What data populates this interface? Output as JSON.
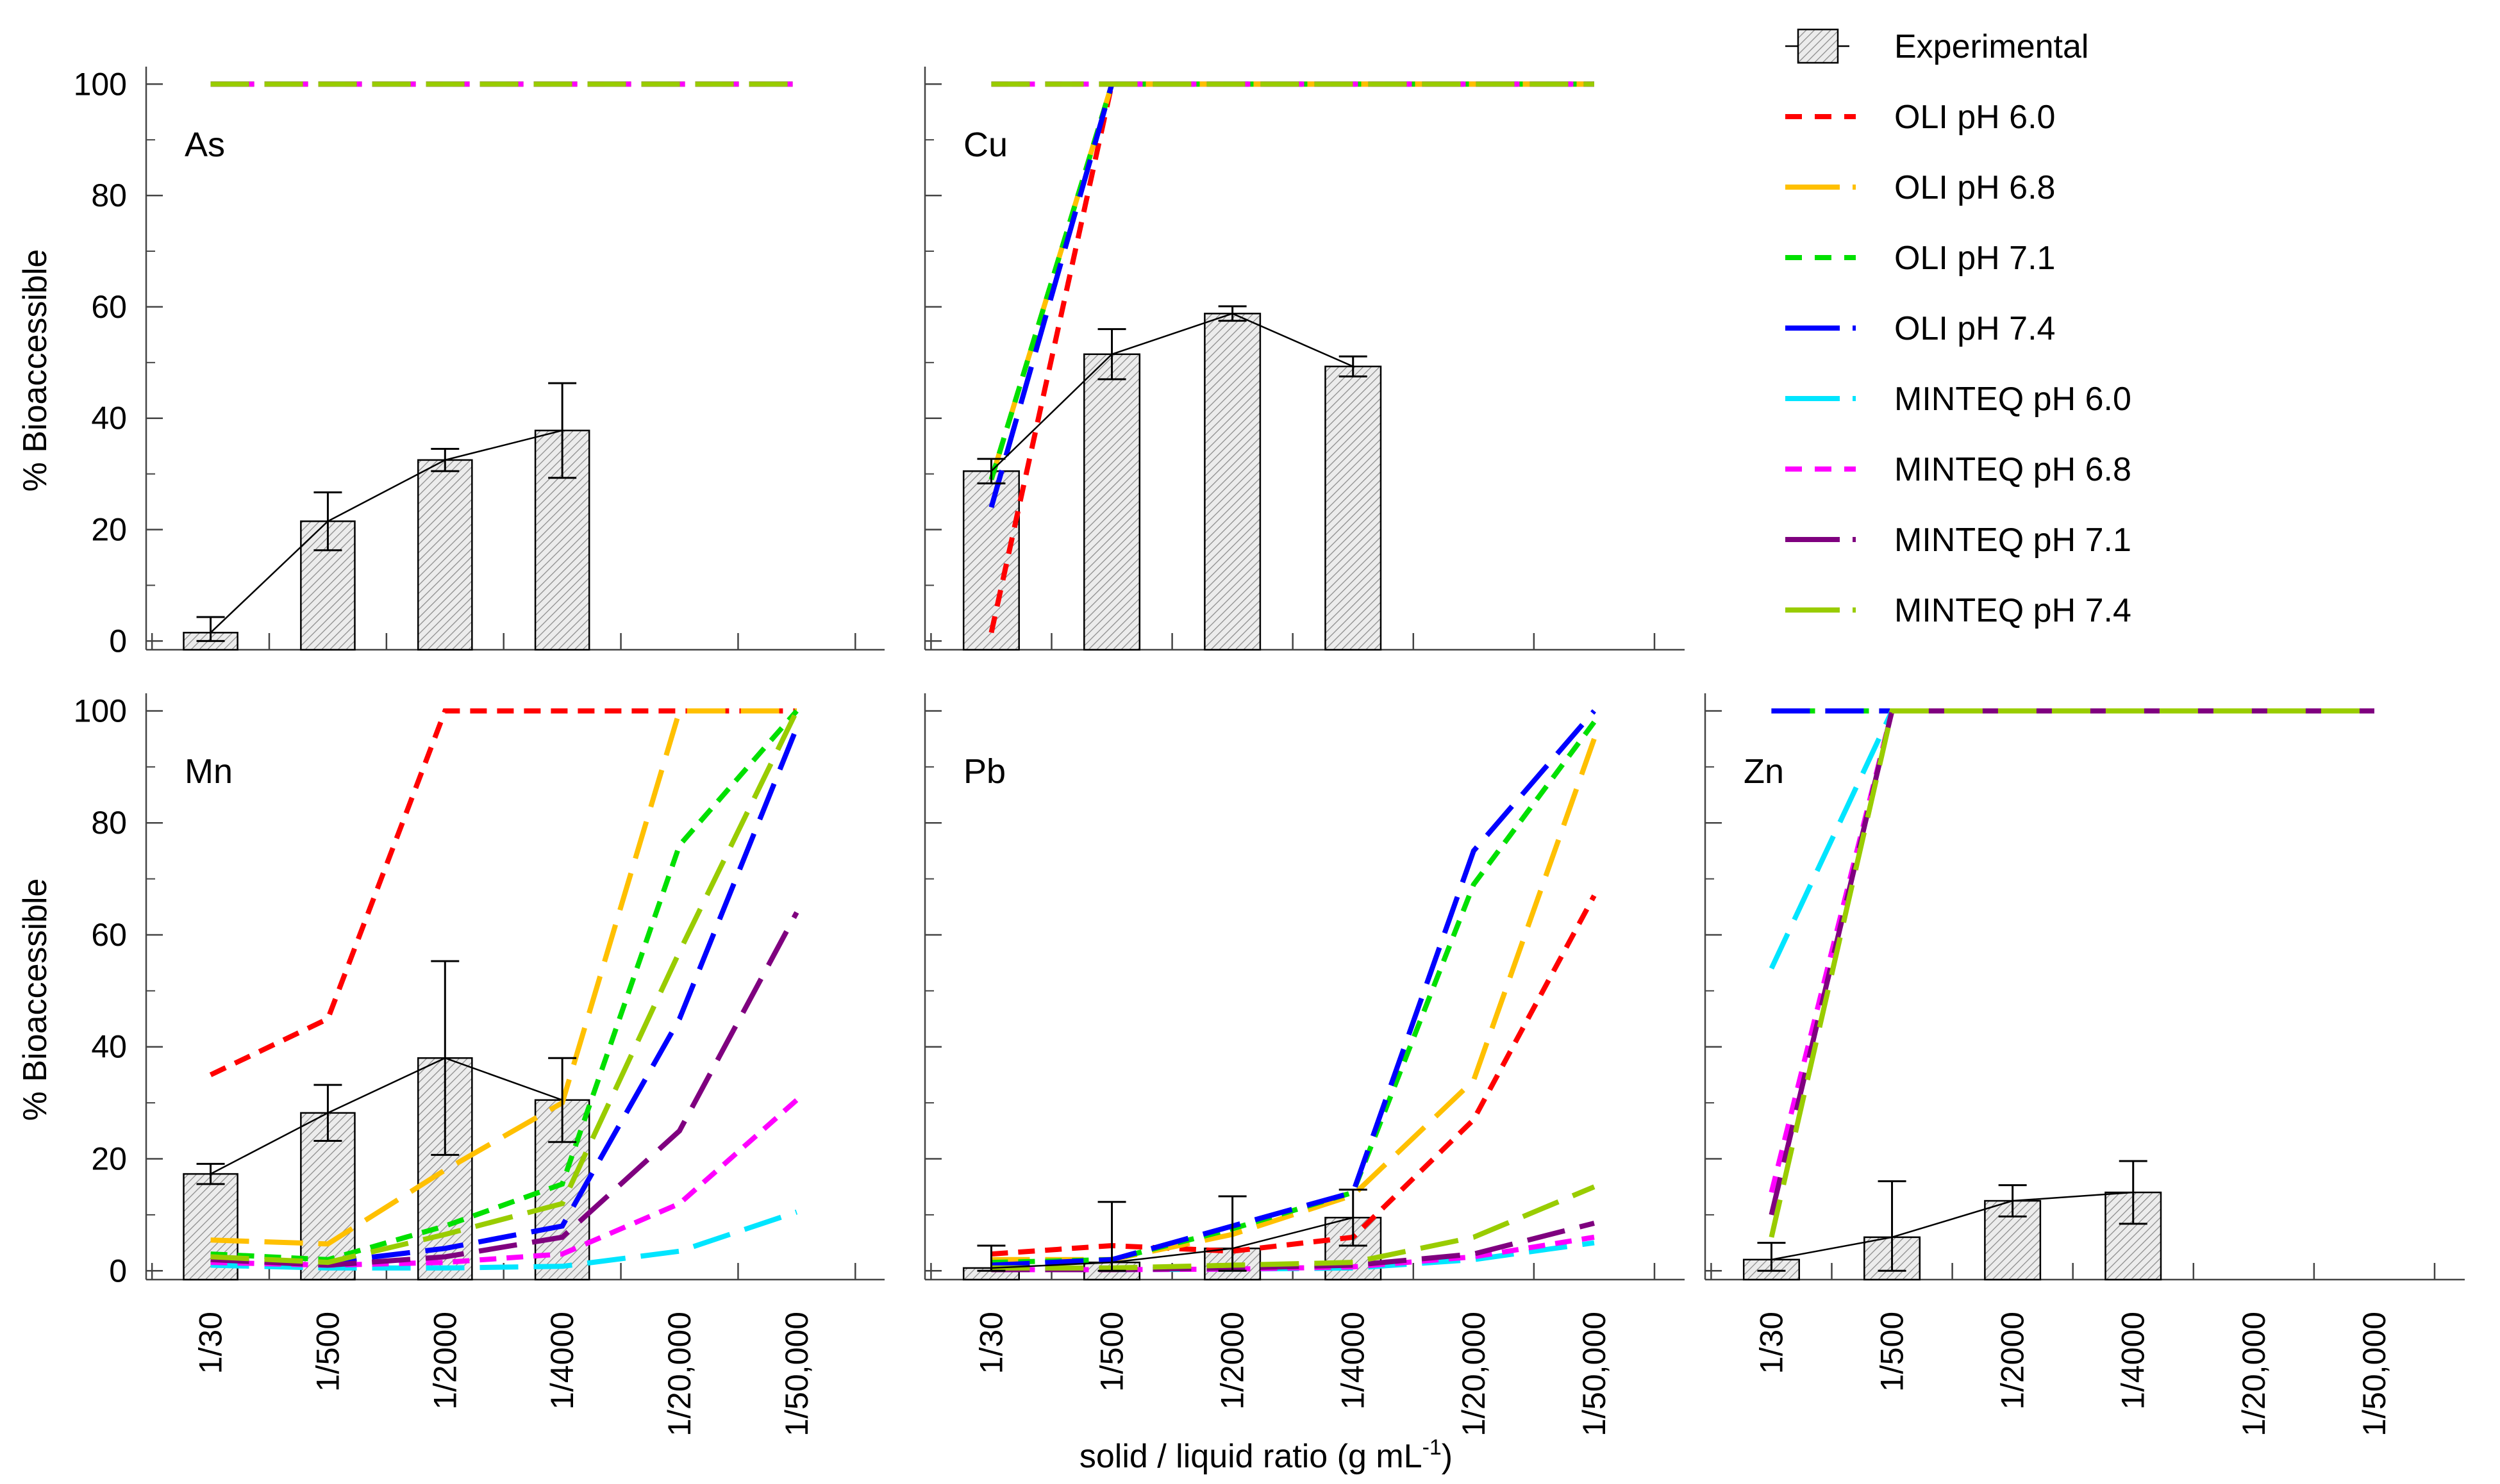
{
  "figure": {
    "ylabel": "% Bioaccessible",
    "xlabel": "solid / liquid ratio (g mL",
    "xlabel_sup": "-1",
    "xlabel_close": ")"
  },
  "legend": [
    {
      "key": "exp",
      "label": "Experimental",
      "color": "#000000",
      "dash": "none",
      "marker": "bar"
    },
    {
      "key": "oli60",
      "label": "OLI pH 6.0",
      "color": "#ff0000",
      "dash": "dash-short"
    },
    {
      "key": "oli68",
      "label": "OLI pH 6.8",
      "color": "#ffc000",
      "dash": "dash-long"
    },
    {
      "key": "oli71",
      "label": "OLI pH 7.1",
      "color": "#00e000",
      "dash": "dash-short"
    },
    {
      "key": "oli74",
      "label": "OLI pH 7.4",
      "color": "#0000ff",
      "dash": "dash-long"
    },
    {
      "key": "min60",
      "label": "MINTEQ pH 6.0",
      "color": "#00e5ff",
      "dash": "dash-long"
    },
    {
      "key": "min68",
      "label": "MINTEQ pH 6.8",
      "color": "#ff00ff",
      "dash": "dash-short"
    },
    {
      "key": "min71",
      "label": "MINTEQ pH 7.1",
      "color": "#7f007f",
      "dash": "dash-long"
    },
    {
      "key": "min74",
      "label": "MINTEQ pH 7.4",
      "color": "#99cc00",
      "dash": "dash-long"
    }
  ],
  "chart_data": [
    {
      "type": "bar+line",
      "title": "As",
      "categories": [
        "1/30",
        "1/500",
        "1/2000",
        "1/4000",
        "1/20,000",
        "1/50,000"
      ],
      "ylim": [
        0,
        100
      ],
      "yticks": [
        0,
        20,
        40,
        60,
        80,
        100
      ],
      "show_x_ticklabels": false,
      "experimental": {
        "values": [
          1.5,
          21.5,
          32.5,
          37.8
        ],
        "errors": [
          2.8,
          5.2,
          2.0,
          8.5
        ]
      },
      "series": [
        {
          "key": "oli60",
          "values": [
            100,
            100,
            100,
            100,
            100,
            100
          ]
        },
        {
          "key": "oli68",
          "values": [
            100,
            100,
            100,
            100,
            100,
            100
          ]
        },
        {
          "key": "oli71",
          "values": [
            100,
            100,
            100,
            100,
            100,
            100
          ]
        },
        {
          "key": "oli74",
          "values": [
            100,
            100,
            100,
            100,
            100,
            100
          ]
        },
        {
          "key": "min60",
          "values": [
            100,
            100,
            100,
            100,
            100,
            100
          ]
        },
        {
          "key": "min68",
          "values": [
            100,
            100,
            100,
            100,
            100,
            100
          ]
        },
        {
          "key": "min71",
          "values": [
            100,
            100,
            100,
            100,
            100,
            100
          ]
        },
        {
          "key": "min74",
          "values": [
            100,
            100,
            100,
            100,
            100,
            100
          ]
        }
      ]
    },
    {
      "type": "bar+line",
      "title": "Cu",
      "categories": [
        "1/30",
        "1/500",
        "1/2000",
        "1/4000",
        "1/20,000",
        "1/50,000"
      ],
      "ylim": [
        0,
        100
      ],
      "yticks": [
        0,
        20,
        40,
        60,
        80,
        100
      ],
      "show_x_ticklabels": false,
      "experimental": {
        "values": [
          30.5,
          51.5,
          58.8,
          49.3
        ],
        "errors": [
          2.2,
          4.5,
          1.3,
          1.8
        ]
      },
      "series": [
        {
          "key": "oli60",
          "values": [
            1.5,
            100,
            100,
            100,
            100,
            100
          ]
        },
        {
          "key": "oli68",
          "values": [
            29,
            100,
            100,
            100,
            100,
            100
          ]
        },
        {
          "key": "oli71",
          "values": [
            29,
            100,
            100,
            100,
            100,
            100
          ]
        },
        {
          "key": "oli74",
          "values": [
            24,
            100,
            100,
            100,
            100,
            100
          ]
        },
        {
          "key": "min60",
          "values": [
            100,
            100,
            100,
            100,
            100,
            100
          ]
        },
        {
          "key": "min68",
          "values": [
            100,
            100,
            100,
            100,
            100,
            100
          ]
        },
        {
          "key": "min71",
          "values": [
            100,
            100,
            100,
            100,
            100,
            100
          ]
        },
        {
          "key": "min74",
          "values": [
            100,
            100,
            100,
            100,
            100,
            100
          ]
        }
      ]
    },
    {
      "type": "bar+line",
      "title": "Mn",
      "categories": [
        "1/30",
        "1/500",
        "1/2000",
        "1/4000",
        "1/20,000",
        "1/50,000"
      ],
      "ylim": [
        0,
        100
      ],
      "yticks": [
        0,
        20,
        40,
        60,
        80,
        100
      ],
      "show_x_ticklabels": true,
      "experimental": {
        "values": [
          17.3,
          28.2,
          38.0,
          30.5
        ],
        "errors": [
          1.8,
          5.0,
          17.3,
          7.5
        ]
      },
      "series": [
        {
          "key": "oli60",
          "values": [
            35,
            45,
            100,
            100,
            100,
            100
          ]
        },
        {
          "key": "oli68",
          "values": [
            5.5,
            4.8,
            18,
            30,
            100,
            100
          ]
        },
        {
          "key": "oli71",
          "values": [
            3,
            2,
            8,
            15.5,
            76,
            100
          ]
        },
        {
          "key": "oli74",
          "values": [
            1.5,
            1.5,
            4,
            8,
            45,
            97
          ]
        },
        {
          "key": "min60",
          "values": [
            1,
            0.5,
            0.5,
            0.8,
            3.5,
            10.5
          ]
        },
        {
          "key": "min68",
          "values": [
            1.5,
            1,
            1.5,
            3,
            12,
            30.5
          ]
        },
        {
          "key": "min71",
          "values": [
            2,
            1,
            2.5,
            6,
            25,
            64
          ]
        },
        {
          "key": "min74",
          "values": [
            2.5,
            1.5,
            6.5,
            12,
            57,
            100
          ]
        }
      ]
    },
    {
      "type": "bar+line",
      "title": "Pb",
      "categories": [
        "1/30",
        "1/500",
        "1/2000",
        "1/4000",
        "1/20,000",
        "1/50,000"
      ],
      "ylim": [
        0,
        100
      ],
      "yticks": [
        0,
        20,
        40,
        60,
        80,
        100
      ],
      "show_x_ticklabels": true,
      "experimental": {
        "values": [
          0.5,
          1.5,
          4.0,
          9.5
        ],
        "errors": [
          4.0,
          10.8,
          9.3,
          5.0
        ]
      },
      "series": [
        {
          "key": "oli60",
          "values": [
            3,
            4.5,
            3.5,
            6,
            27,
            67
          ]
        },
        {
          "key": "oli68",
          "values": [
            2,
            2,
            6.5,
            13.5,
            34,
            95
          ]
        },
        {
          "key": "oli71",
          "values": [
            1.5,
            2,
            7.5,
            14,
            69,
            98
          ]
        },
        {
          "key": "oli74",
          "values": [
            1,
            2,
            8,
            14,
            75,
            100
          ]
        },
        {
          "key": "min60",
          "values": [
            0.2,
            0.2,
            0.3,
            0.5,
            2,
            5
          ]
        },
        {
          "key": "min68",
          "values": [
            0.2,
            0.2,
            0.3,
            0.7,
            2.5,
            6
          ]
        },
        {
          "key": "min71",
          "values": [
            0.2,
            0.2,
            0.5,
            1,
            3,
            8.5
          ]
        },
        {
          "key": "min74",
          "values": [
            0.5,
            0.5,
            1,
            1.5,
            6,
            15
          ]
        }
      ]
    },
    {
      "type": "bar+line",
      "title": "Zn",
      "categories": [
        "1/30",
        "1/500",
        "1/2000",
        "1/4000",
        "1/20,000",
        "1/50,000"
      ],
      "ylim": [
        0,
        100
      ],
      "yticks": [
        0,
        20,
        40,
        60,
        80,
        100
      ],
      "show_x_ticklabels": true,
      "experimental": {
        "values": [
          2.0,
          6.0,
          12.5,
          14.0
        ],
        "errors": [
          3.0,
          10.0,
          2.8,
          5.6
        ]
      },
      "series": [
        {
          "key": "oli60",
          "values": [
            100,
            100,
            100,
            100,
            100,
            100
          ]
        },
        {
          "key": "oli68",
          "values": [
            100,
            100,
            100,
            100,
            100,
            100
          ]
        },
        {
          "key": "oli71",
          "values": [
            100,
            100,
            100,
            100,
            100,
            100
          ]
        },
        {
          "key": "oli74",
          "values": [
            100,
            100,
            100,
            100,
            100,
            100
          ]
        },
        {
          "key": "min60",
          "values": [
            54,
            100,
            100,
            100,
            100,
            100
          ]
        },
        {
          "key": "min68",
          "values": [
            14,
            100,
            100,
            100,
            100,
            100
          ]
        },
        {
          "key": "min71",
          "values": [
            10,
            100,
            100,
            100,
            100,
            100
          ]
        },
        {
          "key": "min74",
          "values": [
            6,
            100,
            100,
            100,
            100,
            100
          ]
        }
      ]
    }
  ]
}
